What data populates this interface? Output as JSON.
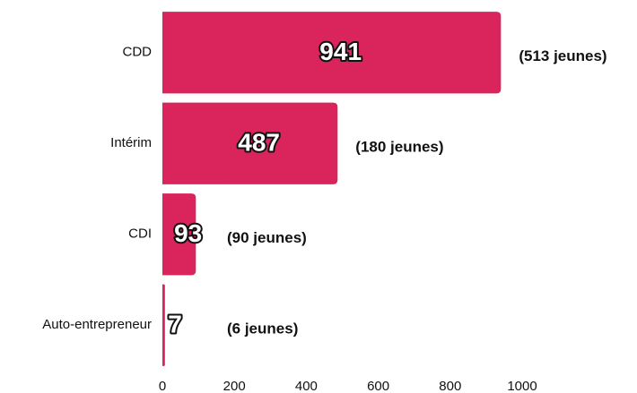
{
  "chart_data": {
    "type": "bar",
    "orientation": "horizontal",
    "categories": [
      "CDD",
      "Intérim",
      "CDI",
      "Auto-entrepreneur"
    ],
    "values": [
      941,
      487,
      93,
      7
    ],
    "annotations": [
      "(513 jeunes)",
      "(180 jeunes)",
      "(90 jeunes)",
      "(6 jeunes)"
    ],
    "color": "#d9245c",
    "xlim": [
      0,
      1000
    ],
    "xticks": [
      0,
      200,
      400,
      600,
      800,
      1000
    ],
    "grid": false
  }
}
